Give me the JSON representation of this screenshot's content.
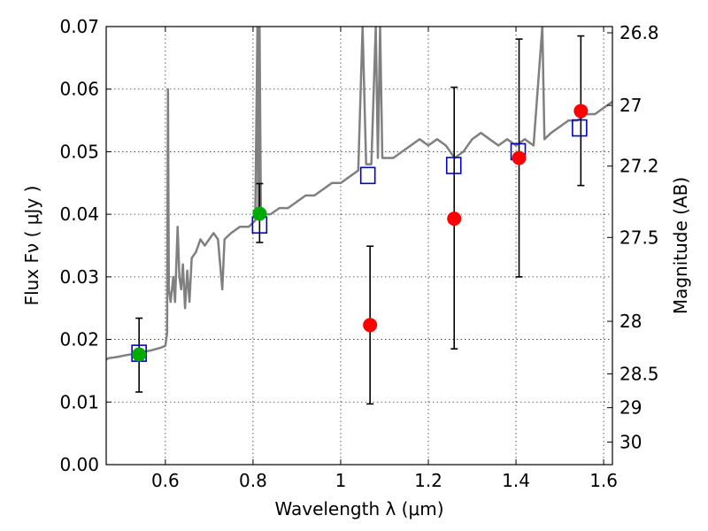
{
  "chart_data": {
    "type": "scatter",
    "xlabel": "Wavelength  λ (μm)",
    "ylabel": "Flux  Fν  ( μJy )",
    "ylabel_right": "Magnitude (AB)",
    "xlim": [
      0.465,
      1.62
    ],
    "ylim": [
      0.0,
      0.07
    ],
    "x_ticks": [
      0.6,
      0.8,
      1.0,
      1.2,
      1.4,
      1.6
    ],
    "x_tick_labels": [
      "0.6",
      "0.8",
      "1",
      "1.2",
      "1.4",
      "1.6"
    ],
    "y_ticks": [
      0.0,
      0.01,
      0.02,
      0.03,
      0.04,
      0.05,
      0.06,
      0.07
    ],
    "y_tick_labels": [
      "0.00",
      "0.01",
      "0.02",
      "0.03",
      "0.04",
      "0.05",
      "0.06",
      "0.07"
    ],
    "right_axis_ticks": [
      {
        "label": "26.8",
        "flux": 0.069
      },
      {
        "label": "27",
        "flux": 0.0574
      },
      {
        "label": "27.2",
        "flux": 0.0477
      },
      {
        "label": "27.5",
        "flux": 0.0363
      },
      {
        "label": "28",
        "flux": 0.0229
      },
      {
        "label": "28.5",
        "flux": 0.0145
      },
      {
        "label": "29",
        "flux": 0.0091
      },
      {
        "label": "30",
        "flux": 0.0036
      }
    ],
    "grid": true,
    "series": [
      {
        "name": "model_spectrum",
        "style": "line",
        "color": "#808080",
        "points": [
          [
            0.465,
            0.0168
          ],
          [
            0.47,
            0.017
          ],
          [
            0.49,
            0.0172
          ],
          [
            0.51,
            0.0175
          ],
          [
            0.53,
            0.0177
          ],
          [
            0.55,
            0.018
          ],
          [
            0.57,
            0.0183
          ],
          [
            0.59,
            0.0187
          ],
          [
            0.6,
            0.019
          ],
          [
            0.604,
            0.021
          ],
          [
            0.606,
            0.06
          ],
          [
            0.608,
            0.028
          ],
          [
            0.612,
            0.026
          ],
          [
            0.618,
            0.03
          ],
          [
            0.622,
            0.026
          ],
          [
            0.628,
            0.038
          ],
          [
            0.632,
            0.03
          ],
          [
            0.636,
            0.028
          ],
          [
            0.64,
            0.032
          ],
          [
            0.645,
            0.025
          ],
          [
            0.65,
            0.031
          ],
          [
            0.655,
            0.026
          ],
          [
            0.66,
            0.033
          ],
          [
            0.67,
            0.034
          ],
          [
            0.68,
            0.036
          ],
          [
            0.69,
            0.035
          ],
          [
            0.7,
            0.036
          ],
          [
            0.71,
            0.037
          ],
          [
            0.72,
            0.036
          ],
          [
            0.73,
            0.028
          ],
          [
            0.735,
            0.036
          ],
          [
            0.75,
            0.037
          ],
          [
            0.77,
            0.038
          ],
          [
            0.79,
            0.038
          ],
          [
            0.805,
            0.039
          ],
          [
            0.81,
            0.07
          ],
          [
            0.812,
            0.04
          ],
          [
            0.815,
            0.07
          ],
          [
            0.818,
            0.04
          ],
          [
            0.84,
            0.04
          ],
          [
            0.86,
            0.041
          ],
          [
            0.88,
            0.041
          ],
          [
            0.9,
            0.042
          ],
          [
            0.92,
            0.043
          ],
          [
            0.94,
            0.043
          ],
          [
            0.96,
            0.044
          ],
          [
            0.98,
            0.045
          ],
          [
            1.0,
            0.045
          ],
          [
            1.02,
            0.046
          ],
          [
            1.04,
            0.047
          ],
          [
            1.05,
            0.07
          ],
          [
            1.058,
            0.048
          ],
          [
            1.07,
            0.048
          ],
          [
            1.08,
            0.07
          ],
          [
            1.085,
            0.049
          ],
          [
            1.09,
            0.07
          ],
          [
            1.095,
            0.049
          ],
          [
            1.12,
            0.049
          ],
          [
            1.14,
            0.05
          ],
          [
            1.16,
            0.051
          ],
          [
            1.18,
            0.052
          ],
          [
            1.2,
            0.051
          ],
          [
            1.22,
            0.052
          ],
          [
            1.24,
            0.051
          ],
          [
            1.26,
            0.049
          ],
          [
            1.28,
            0.05
          ],
          [
            1.3,
            0.052
          ],
          [
            1.32,
            0.053
          ],
          [
            1.34,
            0.052
          ],
          [
            1.36,
            0.051
          ],
          [
            1.38,
            0.052
          ],
          [
            1.4,
            0.051
          ],
          [
            1.42,
            0.052
          ],
          [
            1.44,
            0.051
          ],
          [
            1.46,
            0.07
          ],
          [
            1.465,
            0.052
          ],
          [
            1.48,
            0.053
          ],
          [
            1.5,
            0.054
          ],
          [
            1.52,
            0.055
          ],
          [
            1.54,
            0.055
          ],
          [
            1.56,
            0.056
          ],
          [
            1.58,
            0.056
          ],
          [
            1.6,
            0.057
          ],
          [
            1.62,
            0.058
          ]
        ]
      },
      {
        "name": "model_photometry",
        "style": "open_square",
        "color": "#0000cc",
        "x": [
          0.54,
          0.815,
          1.062,
          1.258,
          1.405,
          1.545
        ],
        "y": [
          0.0178,
          0.0383,
          0.0462,
          0.0478,
          0.05,
          0.0538
        ]
      },
      {
        "name": "observed_detections",
        "style": "filled_circle",
        "color": "#00aa00",
        "x": [
          0.54,
          0.815
        ],
        "y": [
          0.0176,
          0.0401
        ],
        "yerr_low": [
          0.0116,
          0.0355
        ],
        "yerr_high": [
          0.0234,
          0.0449
        ]
      },
      {
        "name": "observed_nondetections",
        "style": "filled_circle",
        "color": "#ff0000",
        "x": [
          1.067,
          1.259,
          1.407,
          1.548
        ],
        "y": [
          0.0223,
          0.0393,
          0.049,
          0.0565
        ],
        "yerr_low": [
          0.0097,
          0.0185,
          0.03,
          0.0446
        ],
        "yerr_high": [
          0.0349,
          0.0603,
          0.068,
          0.0685
        ]
      }
    ]
  }
}
